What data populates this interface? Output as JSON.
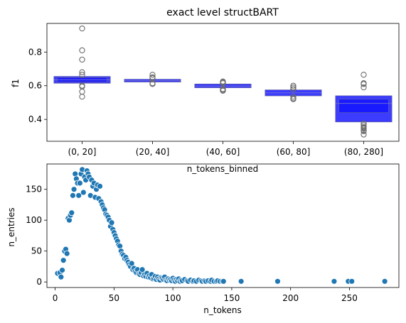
{
  "chart_data": [
    {
      "type": "boxen",
      "title": "exact level structBART",
      "xlabel": "n_tokens_binned",
      "ylabel": "f1",
      "ylim": [
        0.27,
        0.97
      ],
      "yticks": [
        0.4,
        0.6,
        0.8
      ],
      "categories": [
        "(0, 20]",
        "(20, 40]",
        "(40, 60]",
        "(60, 80]",
        "(80, 280]"
      ],
      "color": "#1a1aff",
      "boxes": [
        {
          "category": "(0, 20]",
          "median": 0.635,
          "levels": [
            [
              0.615,
              0.655
            ],
            [
              0.622,
              0.648
            ]
          ],
          "outliers": [
            0.94,
            0.81,
            0.755,
            0.68,
            0.665,
            0.6,
            0.595,
            0.565,
            0.535
          ]
        },
        {
          "category": "(20, 40]",
          "median": 0.63,
          "levels": [
            [
              0.622,
              0.638
            ]
          ],
          "outliers": [
            0.665,
            0.65,
            0.645,
            0.615,
            0.61
          ]
        },
        {
          "category": "(40, 60]",
          "median": 0.598,
          "levels": [
            [
              0.588,
              0.61
            ]
          ],
          "outliers": [
            0.625,
            0.62,
            0.615,
            0.58,
            0.575,
            0.57
          ]
        },
        {
          "category": "(60, 80]",
          "median": 0.558,
          "levels": [
            [
              0.54,
              0.575
            ]
          ],
          "outliers": [
            0.6,
            0.59,
            0.58,
            0.535,
            0.525,
            0.52
          ]
        },
        {
          "category": "(80, 280]",
          "median": 0.495,
          "levels": [
            [
              0.385,
              0.54
            ],
            [
              0.44,
              0.52
            ]
          ],
          "outliers": [
            0.665,
            0.615,
            0.61,
            0.59,
            0.375,
            0.365,
            0.355,
            0.35,
            0.345,
            0.335,
            0.33,
            0.31
          ]
        }
      ]
    },
    {
      "type": "scatter",
      "xlabel": "n_tokens",
      "ylabel": "n_entries",
      "xlim": [
        -7,
        292
      ],
      "ylim": [
        -9,
        191
      ],
      "xticks": [
        0,
        50,
        100,
        150,
        200,
        250
      ],
      "yticks": [
        0,
        50,
        100,
        150
      ],
      "color": "#1f77b4",
      "points": [
        [
          2,
          14
        ],
        [
          4,
          15
        ],
        [
          5,
          8
        ],
        [
          6,
          19
        ],
        [
          7,
          35
        ],
        [
          8,
          50
        ],
        [
          9,
          53
        ],
        [
          10,
          46
        ],
        [
          11,
          103
        ],
        [
          12,
          100
        ],
        [
          13,
          108
        ],
        [
          14,
          112
        ],
        [
          15,
          140
        ],
        [
          16,
          150
        ],
        [
          17,
          175
        ],
        [
          18,
          167
        ],
        [
          19,
          160
        ],
        [
          20,
          140
        ],
        [
          21,
          160
        ],
        [
          22,
          175
        ],
        [
          23,
          182
        ],
        [
          24,
          145
        ],
        [
          25,
          170
        ],
        [
          26,
          165
        ],
        [
          27,
          180
        ],
        [
          28,
          175
        ],
        [
          29,
          170
        ],
        [
          30,
          140
        ],
        [
          31,
          165
        ],
        [
          32,
          155
        ],
        [
          33,
          160
        ],
        [
          34,
          137
        ],
        [
          35,
          150
        ],
        [
          36,
          157
        ],
        [
          37,
          135
        ],
        [
          38,
          155
        ],
        [
          39,
          130
        ],
        [
          40,
          125
        ],
        [
          41,
          120
        ],
        [
          42,
          117
        ],
        [
          43,
          110
        ],
        [
          44,
          108
        ],
        [
          45,
          105
        ],
        [
          46,
          100
        ],
        [
          47,
          90
        ],
        [
          48,
          96
        ],
        [
          49,
          85
        ],
        [
          50,
          80
        ],
        [
          51,
          75
        ],
        [
          52,
          70
        ],
        [
          53,
          66
        ],
        [
          54,
          60
        ],
        [
          55,
          58
        ],
        [
          56,
          50
        ],
        [
          57,
          45
        ],
        [
          58,
          43
        ],
        [
          59,
          38
        ],
        [
          60,
          40
        ],
        [
          61,
          35
        ],
        [
          62,
          32
        ],
        [
          63,
          28
        ],
        [
          64,
          25
        ],
        [
          65,
          30
        ],
        [
          66,
          20
        ],
        [
          67,
          22
        ],
        [
          68,
          17
        ],
        [
          69,
          15
        ],
        [
          70,
          20
        ],
        [
          71,
          13
        ],
        [
          72,
          12
        ],
        [
          73,
          15
        ],
        [
          74,
          20
        ],
        [
          75,
          10
        ],
        [
          76,
          12
        ],
        [
          77,
          9
        ],
        [
          78,
          14
        ],
        [
          79,
          8
        ],
        [
          80,
          10
        ],
        [
          81,
          7
        ],
        [
          82,
          12
        ],
        [
          83,
          5
        ],
        [
          84,
          6
        ],
        [
          85,
          9
        ],
        [
          86,
          4
        ],
        [
          87,
          8
        ],
        [
          88,
          5
        ],
        [
          89,
          3
        ],
        [
          90,
          7
        ],
        [
          91,
          6
        ],
        [
          92,
          4
        ],
        [
          93,
          8
        ],
        [
          94,
          3
        ],
        [
          95,
          2
        ],
        [
          96,
          5
        ],
        [
          97,
          3
        ],
        [
          98,
          4
        ],
        [
          99,
          2
        ],
        [
          100,
          6
        ],
        [
          101,
          3
        ],
        [
          102,
          1
        ],
        [
          103,
          4
        ],
        [
          104,
          2
        ],
        [
          105,
          5
        ],
        [
          106,
          1
        ],
        [
          107,
          3
        ],
        [
          108,
          2
        ],
        [
          110,
          4
        ],
        [
          112,
          2
        ],
        [
          113,
          1
        ],
        [
          115,
          3
        ],
        [
          117,
          1
        ],
        [
          118,
          2
        ],
        [
          120,
          1
        ],
        [
          122,
          3
        ],
        [
          124,
          2
        ],
        [
          125,
          1
        ],
        [
          127,
          2
        ],
        [
          128,
          1
        ],
        [
          130,
          2
        ],
        [
          132,
          1
        ],
        [
          133,
          3
        ],
        [
          135,
          1
        ],
        [
          137,
          1
        ],
        [
          138,
          2
        ],
        [
          140,
          1
        ],
        [
          142,
          1
        ],
        [
          143,
          1
        ],
        [
          158,
          1
        ],
        [
          189,
          1
        ],
        [
          237,
          1
        ],
        [
          249,
          1
        ],
        [
          252,
          1
        ],
        [
          280,
          1
        ]
      ]
    }
  ]
}
